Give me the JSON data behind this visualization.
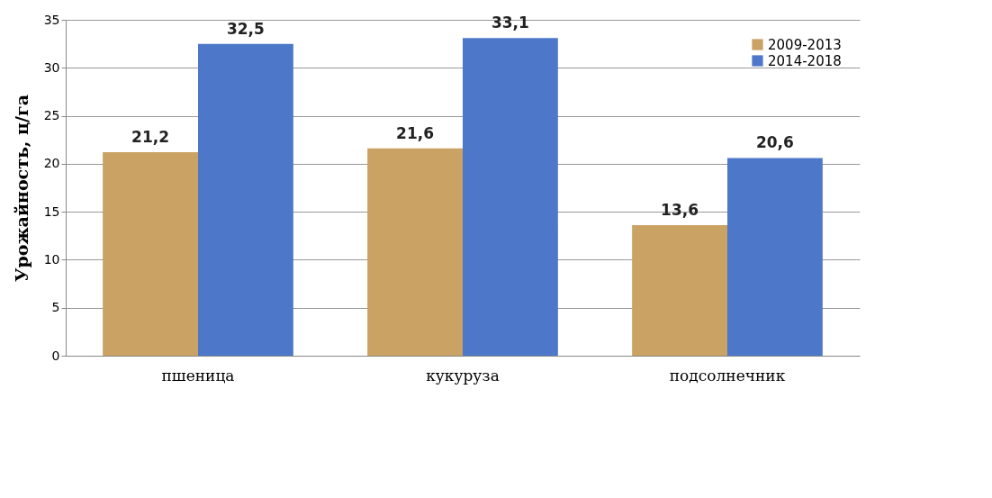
{
  "chart_data": {
    "type": "bar",
    "ylabel": "Урожайность, ц/га",
    "categories": [
      "пшеница",
      "кукуруза",
      "подсолнечник"
    ],
    "series": [
      {
        "name": "2009-2013",
        "color": "#c9a264",
        "values": [
          21.2,
          21.6,
          13.6
        ],
        "value_labels": [
          "21,2",
          "21,6",
          "13,6"
        ]
      },
      {
        "name": "2014-2018",
        "color": "#4d78c9",
        "values": [
          32.5,
          33.1,
          20.6
        ],
        "value_labels": [
          "32,5",
          "33,1",
          "20,6"
        ]
      }
    ],
    "ylim": [
      0,
      35
    ],
    "yticks": [
      0,
      5,
      10,
      15,
      20,
      25,
      30,
      35
    ],
    "grid": "y",
    "legend": "top right"
  }
}
